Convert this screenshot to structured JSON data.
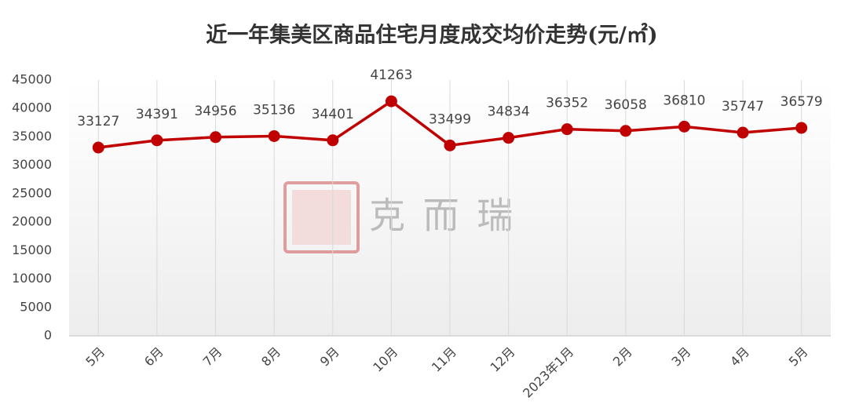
{
  "chart_data": {
    "type": "line",
    "title": "近一年集美区商品住宅月度成交均价走势(元/㎡)",
    "categories": [
      "5月",
      "6月",
      "7月",
      "8月",
      "9月",
      "10月",
      "11月",
      "12月",
      "2023年1月",
      "2月",
      "3月",
      "4月",
      "5月"
    ],
    "values": [
      33127,
      34391,
      34956,
      35136,
      34401,
      41263,
      33499,
      34834,
      36352,
      36058,
      36810,
      35747,
      36579
    ],
    "color": "#c00000",
    "ylim": [
      0,
      45000
    ],
    "yticks": [
      0,
      5000,
      10000,
      15000,
      20000,
      25000,
      30000,
      35000,
      40000,
      45000
    ],
    "grid": true,
    "watermark": "克 而 瑞"
  }
}
